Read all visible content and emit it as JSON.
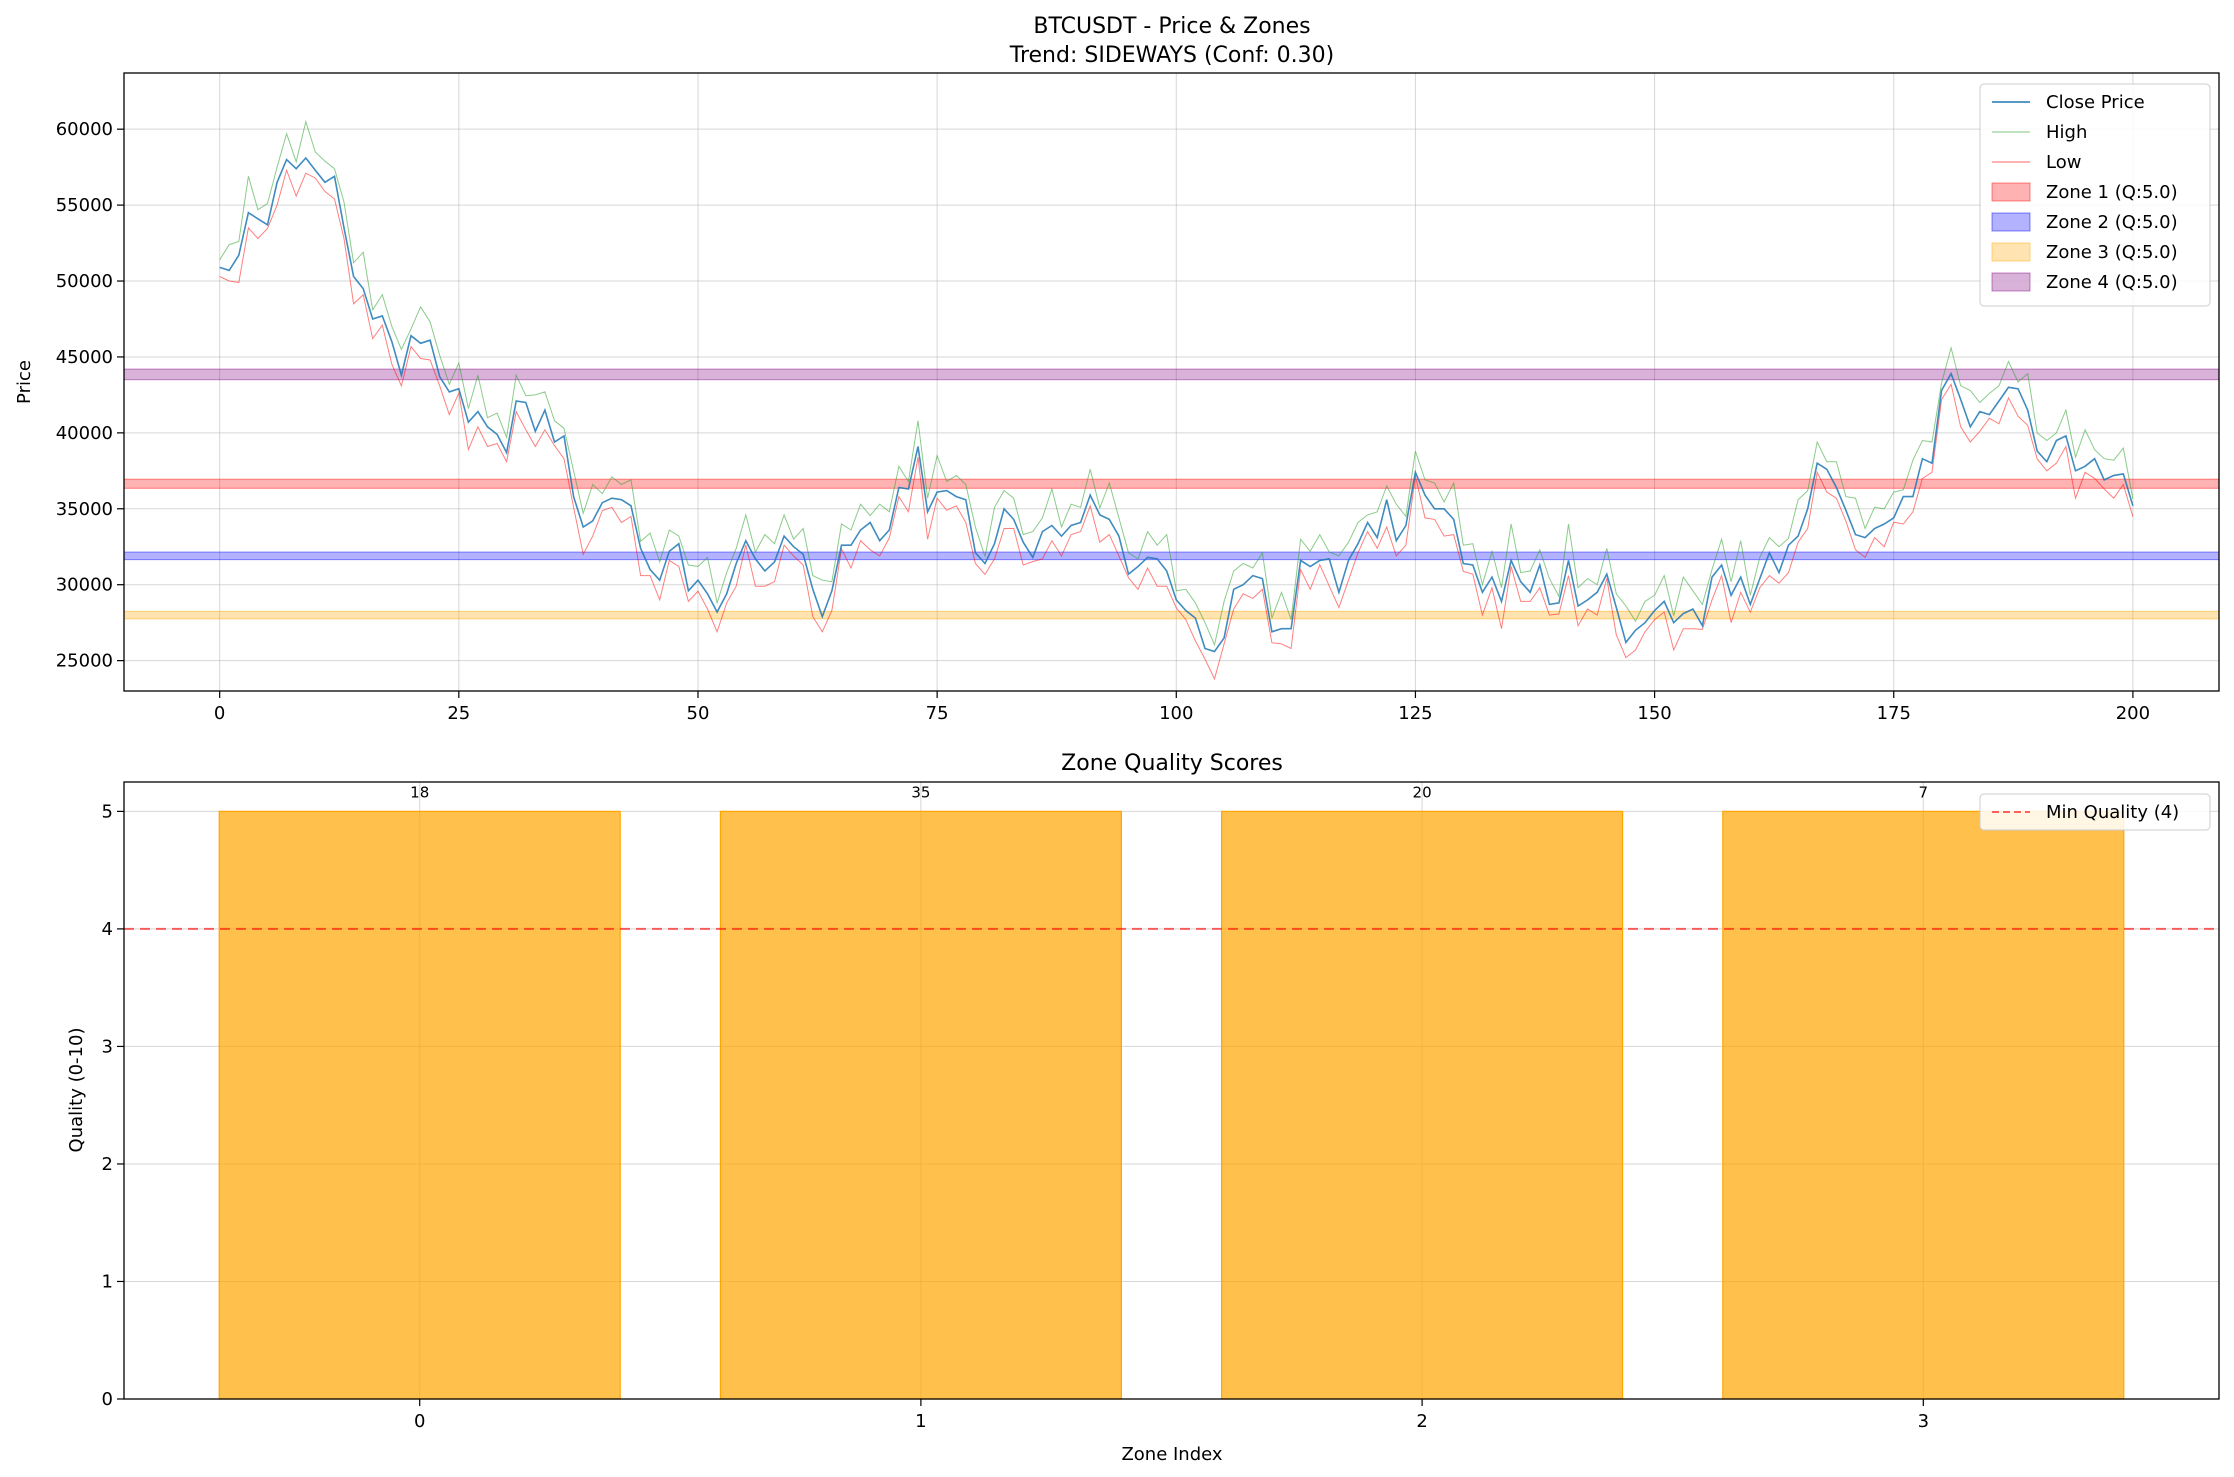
{
  "chart_data": [
    {
      "type": "line",
      "title": "BTCUSDT - Price & Zones",
      "subtitle": "Trend: SIDEWAYS (Conf: 0.30)",
      "xlabel": "",
      "ylabel": "Price",
      "xlim": [
        -10,
        209
      ],
      "ylim": [
        23000,
        63700
      ],
      "grid": true,
      "legend_position": "top-right",
      "x_ticks": [
        0,
        25,
        50,
        75,
        100,
        125,
        150,
        175,
        200
      ],
      "y_ticks": [
        25000,
        30000,
        35000,
        40000,
        45000,
        50000,
        55000,
        60000
      ],
      "anchors": [
        [
          0,
          50900
        ],
        [
          1,
          50700
        ],
        [
          2,
          51700
        ],
        [
          3,
          54500
        ],
        [
          4,
          54100
        ],
        [
          5,
          53700
        ],
        [
          6,
          56500
        ],
        [
          7,
          58000
        ],
        [
          8,
          57400
        ],
        [
          9,
          58100
        ],
        [
          10,
          57300
        ],
        [
          11,
          56500
        ],
        [
          12,
          56900
        ],
        [
          13,
          53500
        ],
        [
          14,
          50300
        ],
        [
          15,
          49500
        ],
        [
          16,
          47500
        ],
        [
          17,
          47700
        ],
        [
          18,
          46000
        ],
        [
          19,
          43800
        ],
        [
          20,
          46400
        ],
        [
          21,
          45900
        ],
        [
          22,
          46100
        ],
        [
          23,
          43700
        ],
        [
          24,
          42700
        ],
        [
          25,
          42900
        ],
        [
          26,
          40700
        ],
        [
          27,
          41400
        ],
        [
          28,
          40400
        ],
        [
          29,
          39900
        ],
        [
          30,
          38700
        ],
        [
          31,
          42100
        ],
        [
          32,
          42000
        ],
        [
          33,
          40100
        ],
        [
          34,
          41500
        ],
        [
          35,
          39400
        ],
        [
          36,
          39800
        ],
        [
          37,
          35800
        ],
        [
          38,
          33800
        ],
        [
          39,
          34200
        ],
        [
          40,
          35400
        ],
        [
          41,
          35700
        ],
        [
          42,
          35600
        ],
        [
          43,
          35200
        ],
        [
          44,
          32400
        ],
        [
          45,
          31000
        ],
        [
          46,
          30300
        ],
        [
          47,
          32200
        ],
        [
          48,
          32700
        ],
        [
          49,
          29600
        ],
        [
          50,
          30300
        ],
        [
          51,
          29400
        ],
        [
          52,
          28200
        ],
        [
          53,
          29400
        ],
        [
          54,
          31400
        ],
        [
          55,
          32900
        ],
        [
          56,
          31700
        ],
        [
          57,
          30900
        ],
        [
          58,
          31500
        ],
        [
          59,
          33200
        ],
        [
          60,
          32500
        ],
        [
          61,
          32000
        ],
        [
          62,
          29700
        ],
        [
          63,
          27900
        ],
        [
          64,
          29600
        ],
        [
          65,
          32600
        ],
        [
          66,
          32600
        ],
        [
          67,
          33600
        ],
        [
          68,
          34100
        ],
        [
          69,
          32900
        ],
        [
          70,
          33600
        ],
        [
          71,
          36400
        ],
        [
          72,
          36300
        ],
        [
          73,
          39100
        ],
        [
          74,
          34800
        ],
        [
          75,
          36100
        ],
        [
          76,
          36200
        ],
        [
          77,
          35800
        ],
        [
          78,
          35600
        ],
        [
          79,
          32100
        ],
        [
          80,
          31400
        ],
        [
          81,
          32700
        ],
        [
          82,
          35000
        ],
        [
          83,
          34300
        ],
        [
          84,
          32800
        ],
        [
          85,
          31800
        ],
        [
          86,
          33500
        ],
        [
          87,
          33900
        ],
        [
          88,
          33200
        ],
        [
          89,
          33900
        ],
        [
          90,
          34100
        ],
        [
          91,
          35900
        ],
        [
          92,
          34600
        ],
        [
          93,
          34300
        ],
        [
          94,
          33200
        ],
        [
          95,
          30700
        ],
        [
          96,
          31200
        ],
        [
          97,
          31800
        ],
        [
          98,
          31700
        ],
        [
          99,
          30900
        ],
        [
          100,
          29000
        ],
        [
          101,
          28300
        ],
        [
          102,
          27800
        ],
        [
          103,
          25800
        ],
        [
          104,
          25600
        ],
        [
          105,
          26500
        ],
        [
          106,
          29700
        ],
        [
          107,
          30000
        ],
        [
          108,
          30600
        ],
        [
          109,
          30400
        ],
        [
          110,
          26900
        ],
        [
          111,
          27100
        ],
        [
          112,
          27100
        ],
        [
          113,
          31600
        ],
        [
          114,
          31200
        ],
        [
          115,
          31600
        ],
        [
          116,
          31700
        ],
        [
          117,
          29500
        ],
        [
          118,
          31600
        ],
        [
          119,
          32700
        ],
        [
          120,
          34100
        ],
        [
          121,
          33100
        ],
        [
          122,
          35600
        ],
        [
          123,
          32900
        ],
        [
          124,
          33900
        ],
        [
          125,
          37400
        ],
        [
          126,
          35900
        ],
        [
          127,
          35000
        ],
        [
          128,
          35000
        ],
        [
          129,
          34300
        ],
        [
          130,
          31400
        ],
        [
          131,
          31300
        ],
        [
          132,
          29500
        ],
        [
          133,
          30500
        ],
        [
          134,
          28900
        ],
        [
          135,
          31600
        ],
        [
          136,
          30200
        ],
        [
          137,
          29500
        ],
        [
          138,
          31300
        ],
        [
          139,
          28700
        ],
        [
          140,
          28800
        ],
        [
          141,
          31600
        ],
        [
          142,
          28600
        ],
        [
          143,
          29000
        ],
        [
          144,
          29500
        ],
        [
          145,
          30700
        ],
        [
          146,
          28500
        ],
        [
          147,
          26200
        ],
        [
          148,
          27000
        ],
        [
          149,
          27500
        ],
        [
          150,
          28300
        ],
        [
          151,
          28900
        ],
        [
          152,
          27500
        ],
        [
          153,
          28100
        ],
        [
          154,
          28400
        ],
        [
          155,
          27300
        ],
        [
          156,
          30500
        ],
        [
          157,
          31300
        ],
        [
          158,
          29300
        ],
        [
          159,
          30500
        ],
        [
          160,
          28700
        ],
        [
          161,
          30400
        ],
        [
          162,
          32100
        ],
        [
          163,
          30800
        ],
        [
          164,
          32600
        ],
        [
          165,
          33200
        ],
        [
          166,
          35000
        ],
        [
          167,
          38000
        ],
        [
          168,
          37600
        ],
        [
          169,
          36400
        ],
        [
          170,
          34900
        ],
        [
          171,
          33300
        ],
        [
          172,
          33100
        ],
        [
          173,
          33700
        ],
        [
          174,
          34000
        ],
        [
          175,
          34400
        ],
        [
          176,
          35800
        ],
        [
          177,
          35800
        ],
        [
          178,
          38300
        ],
        [
          179,
          38000
        ],
        [
          180,
          42800
        ],
        [
          181,
          43900
        ],
        [
          182,
          42200
        ],
        [
          183,
          40400
        ],
        [
          184,
          41400
        ],
        [
          185,
          41200
        ],
        [
          186,
          42100
        ],
        [
          187,
          43000
        ],
        [
          188,
          42900
        ],
        [
          189,
          41500
        ],
        [
          190,
          38800
        ],
        [
          191,
          38100
        ],
        [
          192,
          39500
        ],
        [
          193,
          39800
        ],
        [
          194,
          37500
        ],
        [
          195,
          37800
        ],
        [
          196,
          38300
        ],
        [
          197,
          36900
        ],
        [
          198,
          37200
        ],
        [
          199,
          37300
        ],
        [
          200,
          35200
        ]
      ],
      "high_offsets": [
        1000,
        1700,
        900,
        2400,
        1200,
        1400
      ],
      "low_offsets": [
        1500,
        700,
        1800,
        1000,
        1300,
        600
      ],
      "series": [
        {
          "name": "Close Price",
          "color": "#1f77b4"
        },
        {
          "name": "High",
          "color": "#2ca02c"
        },
        {
          "name": "Low",
          "color": "#ff0000"
        }
      ],
      "zones": [
        {
          "name": "Zone 1 (Q:5.0)",
          "low": 36350,
          "high": 36950,
          "fill": "#ff0000",
          "edge": "#ff0000"
        },
        {
          "name": "Zone 2 (Q:5.0)",
          "low": 31650,
          "high": 32150,
          "fill": "#0000ff",
          "edge": "#0000ff"
        },
        {
          "name": "Zone 3 (Q:5.0)",
          "low": 27750,
          "high": 28250,
          "fill": "#ffa500",
          "edge": "#ffa500"
        },
        {
          "name": "Zone 4 (Q:5.0)",
          "low": 43500,
          "high": 44200,
          "fill": "#800080",
          "edge": "#800080"
        }
      ]
    },
    {
      "type": "bar",
      "title": "Zone Quality Scores",
      "xlabel": "Zone Index",
      "ylabel": "Quality (0-10)",
      "categories": [
        "0",
        "1",
        "2",
        "3"
      ],
      "values": [
        5,
        5,
        5,
        5
      ],
      "bar_labels": [
        "18",
        "35",
        "20",
        "7"
      ],
      "bar_color": "#ffa500",
      "ylim": [
        0,
        5.25
      ],
      "xlim": [
        -0.59,
        3.59
      ],
      "y_ticks": [
        0,
        1,
        2,
        3,
        4,
        5
      ],
      "grid": true,
      "legend_position": "top-right",
      "threshold": {
        "value": 4,
        "label": "Min Quality (4)",
        "color": "#ff0000",
        "style": "dashed"
      }
    }
  ]
}
